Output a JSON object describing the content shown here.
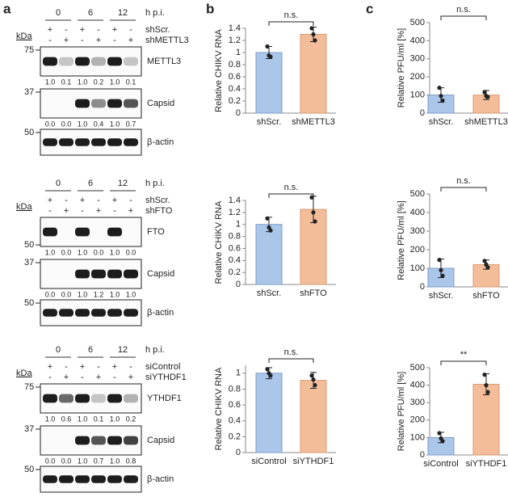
{
  "panel_labels": [
    "a",
    "b",
    "c"
  ],
  "blots": [
    {
      "timepoints": [
        "0",
        "6",
        "12"
      ],
      "hpi": "h p.i.",
      "kda": "kDa",
      "conditions": [
        {
          "name": "shScr.",
          "signs": [
            "+",
            "-",
            "+",
            "-",
            "+",
            "-"
          ]
        },
        {
          "name": "shMETTL3",
          "signs": [
            "-",
            "+",
            "-",
            "+",
            "-",
            "+"
          ]
        }
      ],
      "rows": [
        {
          "marker": "75",
          "label": "METTL3",
          "quant": [
            "1.0",
            "0.1",
            "1.0",
            "0.2",
            "1.0",
            "0.1"
          ]
        },
        {
          "marker": "37",
          "label": "Capsid",
          "quant": [
            "0.0",
            "0.0",
            "1.0",
            "0.4",
            "1.0",
            "0.7"
          ]
        },
        {
          "marker": "50",
          "label": "β-actin"
        }
      ]
    },
    {
      "timepoints": [
        "0",
        "6",
        "12"
      ],
      "hpi": "h p.i.",
      "kda": "kDa",
      "conditions": [
        {
          "name": "shScr.",
          "signs": [
            "+",
            "-",
            "+",
            "-",
            "+",
            "-"
          ]
        },
        {
          "name": "shFTO",
          "signs": [
            "-",
            "+",
            "-",
            "+",
            "-",
            "+"
          ]
        }
      ],
      "rows": [
        {
          "marker": "50",
          "label": "FTO",
          "quant": [
            "1.0",
            "0.0",
            "1.0",
            "0.0",
            "1.0",
            "0.0"
          ]
        },
        {
          "marker": "37",
          "label": "Capsid",
          "quant": [
            "0.0",
            "0.0",
            "1.0",
            "1.2",
            "1.0",
            "1.0"
          ]
        },
        {
          "marker": "50",
          "label": "β-actin"
        }
      ]
    },
    {
      "timepoints": [
        "0",
        "6",
        "12"
      ],
      "hpi": "h p.i.",
      "kda": "kDa",
      "conditions": [
        {
          "name": "siControl",
          "signs": [
            "+",
            "-",
            "+",
            "-",
            "+",
            "-"
          ]
        },
        {
          "name": "siYTHDF1",
          "signs": [
            "-",
            "+",
            "-",
            "+",
            "-",
            "+"
          ]
        }
      ],
      "rows": [
        {
          "marker": "75",
          "label": "YTHDF1",
          "quant": [
            "1.0",
            "0.6",
            "1.0",
            "0.1",
            "1.0",
            "0.2"
          ]
        },
        {
          "marker": "37",
          "label": "Capsid",
          "quant": [
            "0.0",
            "0.0",
            "1.0",
            "0.7",
            "1.0",
            "0.8"
          ]
        },
        {
          "marker": "50",
          "label": "β-actin"
        }
      ]
    }
  ],
  "chart_data": [
    {
      "type": "bar",
      "ylabel": "Relative CHIKV RNA",
      "categories": [
        "shScr.",
        "shMETTL3"
      ],
      "values": [
        1.0,
        1.3
      ],
      "errors": [
        0.1,
        0.12
      ],
      "points": [
        [
          1.1,
          0.95,
          0.93
        ],
        [
          1.4,
          1.3,
          1.2
        ]
      ],
      "colors": [
        "#aac7ea",
        "#f4bd9a"
      ],
      "ylim": [
        0,
        1.4
      ],
      "yticks": [
        0,
        0.2,
        0.4,
        0.6,
        0.8,
        1,
        1.2,
        1.4
      ],
      "annotation": "n.s."
    },
    {
      "type": "bar",
      "ylabel": "Relative CHIKV RNA",
      "categories": [
        "shScr.",
        "shFTO"
      ],
      "values": [
        1.0,
        1.25
      ],
      "errors": [
        0.12,
        0.22
      ],
      "points": [
        [
          1.1,
          0.95,
          0.9
        ],
        [
          1.45,
          1.2,
          1.05
        ]
      ],
      "colors": [
        "#aac7ea",
        "#f4bd9a"
      ],
      "ylim": [
        0,
        1.4
      ],
      "yticks": [
        0,
        0.2,
        0.4,
        0.6,
        0.8,
        1,
        1.2,
        1.4
      ],
      "annotation": "n.s."
    },
    {
      "type": "bar",
      "ylabel": "Relative CHIKV RNA",
      "categories": [
        "siControl",
        "siYTHDF1"
      ],
      "values": [
        1.0,
        0.91
      ],
      "errors": [
        0.07,
        0.1
      ],
      "points": [
        [
          1.05,
          1.0,
          0.97
        ],
        [
          0.97,
          0.92,
          0.85
        ]
      ],
      "colors": [
        "#aac7ea",
        "#f4bd9a"
      ],
      "ylim": [
        0,
        1.1
      ],
      "yticks": [
        0,
        0.2,
        0.4,
        0.6,
        0.8,
        1
      ],
      "annotation": "n.s."
    },
    {
      "type": "bar",
      "ylabel": "Relative PFU/ml [%]",
      "categories": [
        "shScr.",
        "shMETTL3"
      ],
      "values": [
        100,
        100
      ],
      "errors": [
        40,
        25
      ],
      "points": [
        [
          140,
          95,
          70
        ],
        [
          115,
          95,
          90
        ]
      ],
      "colors": [
        "#aac7ea",
        "#f4bd9a"
      ],
      "ylim": [
        0,
        500
      ],
      "yticks": [
        0,
        100,
        200,
        300,
        400,
        500
      ],
      "annotation": "n.s."
    },
    {
      "type": "bar",
      "ylabel": "Relative PFU/ml [%]",
      "categories": [
        "shScr.",
        "shFTO"
      ],
      "values": [
        100,
        120
      ],
      "errors": [
        50,
        25
      ],
      "points": [
        [
          145,
          90,
          60
        ],
        [
          140,
          120,
          105
        ]
      ],
      "colors": [
        "#aac7ea",
        "#f4bd9a"
      ],
      "ylim": [
        0,
        500
      ],
      "yticks": [
        0,
        100,
        200,
        300,
        400,
        500
      ],
      "annotation": "n.s."
    },
    {
      "type": "bar",
      "ylabel": "Relative PFU/ml [%]",
      "categories": [
        "siControl",
        "siYTHDF1"
      ],
      "values": [
        100,
        405
      ],
      "errors": [
        30,
        60
      ],
      "points": [
        [
          125,
          95,
          80
        ],
        [
          460,
          400,
          360
        ]
      ],
      "colors": [
        "#aac7ea",
        "#f4bd9a"
      ],
      "ylim": [
        0,
        500
      ],
      "yticks": [
        0,
        100,
        200,
        300,
        400,
        500
      ],
      "annotation": "**"
    }
  ]
}
